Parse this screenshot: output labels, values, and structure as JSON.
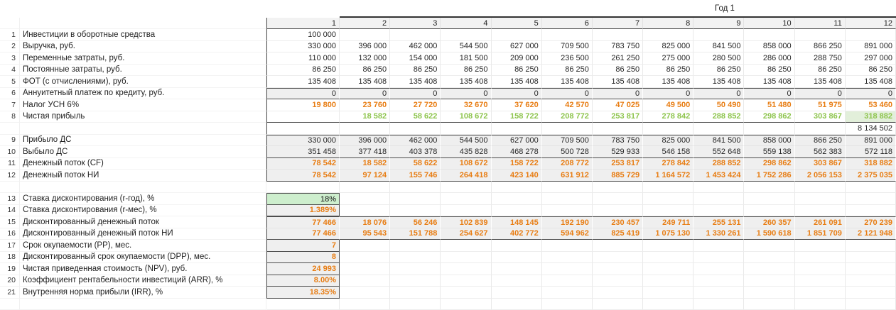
{
  "header": {
    "year_label": "Год 1",
    "months": [
      "1",
      "2",
      "3",
      "4",
      "5",
      "6",
      "7",
      "8",
      "9",
      "10",
      "11",
      "12"
    ]
  },
  "colors": {
    "orange_value_text": "#e87d13",
    "green_value_text": "#8dc44c",
    "rate_cell_green_bg": "#cdeecd",
    "net_profit_last_cell_bg": "#e2efda",
    "gray_row_fill": "#efefef",
    "header_fill": "#f2f2f2"
  },
  "rows": [
    {
      "n": "1",
      "label": "Инвестиции в оборотные средства",
      "cls": "",
      "values": [
        "100 000",
        "",
        "",
        "",
        "",
        "",
        "",
        "",
        "",
        "",
        "",
        ""
      ]
    },
    {
      "n": "2",
      "label": "Выручка, руб.",
      "cls": "",
      "values": [
        "330 000",
        "396 000",
        "462 000",
        "544 500",
        "627 000",
        "709 500",
        "783 750",
        "825 000",
        "841 500",
        "858 000",
        "866 250",
        "891 000"
      ]
    },
    {
      "n": "3",
      "label": "Переменные затраты, руб.",
      "cls": "",
      "values": [
        "110 000",
        "132 000",
        "154 000",
        "181 500",
        "209 000",
        "236 500",
        "261 250",
        "275 000",
        "280 500",
        "286 000",
        "288 750",
        "297 000"
      ]
    },
    {
      "n": "4",
      "label": "Постоянные затраты, руб.",
      "cls": "",
      "values": [
        "86 250",
        "86 250",
        "86 250",
        "86 250",
        "86 250",
        "86 250",
        "86 250",
        "86 250",
        "86 250",
        "86 250",
        "86 250",
        "86 250"
      ]
    },
    {
      "n": "5",
      "label": "ФОТ (с отчислениями), руб.",
      "cls": "",
      "values": [
        "135 408",
        "135 408",
        "135 408",
        "135 408",
        "135 408",
        "135 408",
        "135 408",
        "135 408",
        "135 408",
        "135 408",
        "135 408",
        "135 408"
      ]
    },
    {
      "n": "6",
      "label": "Аннуитетный платеж по кредиту, руб.",
      "cls": "gray btd bbd",
      "values": [
        "0",
        "0",
        "0",
        "0",
        "0",
        "0",
        "0",
        "0",
        "0",
        "0",
        "0",
        "0"
      ]
    },
    {
      "n": "7",
      "label": "Налог УСН 6%",
      "cls": "orange",
      "values": [
        "19 800",
        "23 760",
        "27 720",
        "32 670",
        "37 620",
        "42 570",
        "47 025",
        "49 500",
        "50 490",
        "51 480",
        "51 975",
        "53 460"
      ]
    },
    {
      "n": "8",
      "label": "Чистая прибыль",
      "cls": "green bbd",
      "cellcls": {
        "11": "pale"
      },
      "values": [
        "",
        "18 582",
        "58 622",
        "108 672",
        "158 722",
        "208 772",
        "253 817",
        "278 842",
        "288 852",
        "298 862",
        "303 867",
        "318 882"
      ]
    },
    {
      "n": "",
      "label": "",
      "cls": "",
      "values": [
        "",
        "",
        "",
        "",
        "",
        "",
        "",
        "",
        "",
        "",
        "",
        "8 134 502"
      ]
    },
    {
      "n": "9",
      "label": "Прибыло ДС",
      "cls": "gray btd",
      "values": [
        "330 000",
        "396 000",
        "462 000",
        "544 500",
        "627 000",
        "709 500",
        "783 750",
        "825 000",
        "841 500",
        "858 000",
        "866 250",
        "891 000"
      ]
    },
    {
      "n": "10",
      "label": "Выбыло ДС",
      "cls": "gray bbd",
      "values": [
        "351 458",
        "377 418",
        "403 378",
        "435 828",
        "468 278",
        "500 728",
        "529 933",
        "546 158",
        "552 648",
        "559 138",
        "562 383",
        "572 118"
      ]
    },
    {
      "n": "11",
      "label": "Денежный поток (CF)",
      "cls": "gray orange",
      "values": [
        "78 542",
        "18 582",
        "58 622",
        "108 672",
        "158 722",
        "208 772",
        "253 817",
        "278 842",
        "288 852",
        "298 862",
        "303 867",
        "318 882"
      ]
    },
    {
      "n": "12",
      "label": "Денежный поток НИ",
      "cls": "gray orange bbd",
      "values": [
        "78 542",
        "97 124",
        "155 746",
        "264 418",
        "423 140",
        "631 912",
        "885 729",
        "1 164 572",
        "1 453 424",
        "1 752 286",
        "2 056 153",
        "2 375 035"
      ]
    },
    {
      "n": "",
      "label": "",
      "cls": "noleft",
      "values": [
        "",
        "",
        "",
        "",
        "",
        "",
        "",
        "",
        "",
        "",
        "",
        ""
      ]
    },
    {
      "n": "13",
      "label": "Ставка дисконтирования (r-год), %",
      "cls": "",
      "cellcls": {
        "0": "ratecell btd2"
      },
      "values": [
        "18%",
        "",
        "",
        "",
        "",
        "",
        "",
        "",
        "",
        "",
        "",
        ""
      ]
    },
    {
      "n": "14",
      "label": "Ставка дисконтирования (r-мес), %",
      "cls": "orange",
      "cellcls": {
        "0": "box"
      },
      "values": [
        "1.389%",
        "",
        "",
        "",
        "",
        "",
        "",
        "",
        "",
        "",
        "",
        ""
      ]
    },
    {
      "n": "15",
      "label": "Дисконтированный денежный поток",
      "cls": "gray orange btd",
      "cellcls": {
        "0": "brd"
      },
      "values": [
        "77 466",
        "18 076",
        "56 246",
        "102 839",
        "148 145",
        "192 190",
        "230 457",
        "249 711",
        "255 131",
        "260 357",
        "261 091",
        "270 239"
      ]
    },
    {
      "n": "16",
      "label": "Дисконтированный денежный поток НИ",
      "cls": "gray orange bbd",
      "cellcls": {
        "0": "brd"
      },
      "values": [
        "77 466",
        "95 543",
        "151 788",
        "254 627",
        "402 772",
        "594 962",
        "825 419",
        "1 075 130",
        "1 330 261",
        "1 590 618",
        "1 851 709",
        "2 121 948"
      ]
    },
    {
      "n": "17",
      "label": "Срок окупаемости (PP), мес.",
      "cls": "orange",
      "cellcls": {
        "0": "box"
      },
      "values": [
        "7",
        "",
        "",
        "",
        "",
        "",
        "",
        "",
        "",
        "",
        "",
        ""
      ]
    },
    {
      "n": "18",
      "label": "Дисконтированный срок окупаемости (DPP), мес.",
      "cls": "orange",
      "cellcls": {
        "0": "box"
      },
      "values": [
        "8",
        "",
        "",
        "",
        "",
        "",
        "",
        "",
        "",
        "",
        "",
        ""
      ]
    },
    {
      "n": "19",
      "label": "Чистая приведенная стоимость (NPV), руб.",
      "cls": "orange",
      "cellcls": {
        "0": "box"
      },
      "values": [
        "24 993",
        "",
        "",
        "",
        "",
        "",
        "",
        "",
        "",
        "",
        "",
        ""
      ]
    },
    {
      "n": "20",
      "label": "Коэффициент рентабельности инвестиций (ARR), %",
      "cls": "orange",
      "cellcls": {
        "0": "box"
      },
      "values": [
        "8.00%",
        "",
        "",
        "",
        "",
        "",
        "",
        "",
        "",
        "",
        "",
        ""
      ]
    },
    {
      "n": "21",
      "label": "Внутренняя норма прибыли (IRR), %",
      "cls": "orange",
      "cellcls": {
        "0": "box"
      },
      "values": [
        "18.35%",
        "",
        "",
        "",
        "",
        "",
        "",
        "",
        "",
        "",
        "",
        ""
      ]
    },
    {
      "n": "",
      "label": "",
      "cls": "noleft",
      "values": [
        "",
        "",
        "",
        "",
        "",
        "",
        "",
        "",
        "",
        "",
        "",
        ""
      ]
    }
  ]
}
